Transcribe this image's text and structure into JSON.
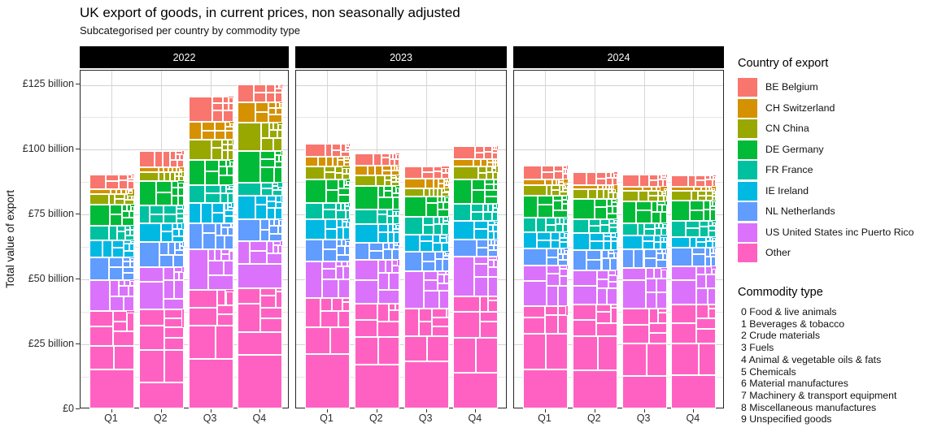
{
  "chart": {
    "title": "UK export of goods, in current prices, non seasonally adjusted",
    "subtitle": "Subcategorised per country by commodity type",
    "y_axis_title": "Total value of export",
    "legend_title": "Country of export",
    "commodity_title": "Commodity type"
  },
  "chart_data": {
    "type": "bar",
    "variant": "mosaic-stacked-faceted",
    "unit": "GBP billion",
    "ylim": [
      0,
      130
    ],
    "ytick_values": [
      0,
      25,
      50,
      75,
      100,
      125
    ],
    "ytick_labels": [
      "£0",
      "£25 billion",
      "£50 billion",
      "£75 billion",
      "£100 billion",
      "£125 billion"
    ],
    "grid": {
      "major_color": "#d3d3d3",
      "minor_color": "#e6e6e6",
      "minor_step": 12.5
    },
    "legend_position": "right",
    "facets": [
      "2022",
      "2023",
      "2024"
    ],
    "categories": [
      "Q1",
      "Q2",
      "Q3",
      "Q4"
    ],
    "series": [
      {
        "name": "BE Belgium",
        "color": "#F8766D",
        "values": {
          "2022": [
            5.5,
            6.3,
            9.6,
            6.8
          ],
          "2023": [
            5.0,
            4.7,
            4.7,
            5.2
          ],
          "2024": [
            5.2,
            4.9,
            4.7,
            4.4
          ]
        }
      },
      {
        "name": "CH Switzerland",
        "color": "#D59100",
        "values": {
          "2022": [
            1.9,
            1.6,
            6.8,
            7.8
          ],
          "2023": [
            3.7,
            3.7,
            3.7,
            2.6
          ],
          "2024": [
            2.1,
            1.6,
            1.6,
            1.6
          ]
        }
      },
      {
        "name": "CN China",
        "color": "#99A800",
        "values": {
          "2022": [
            4.3,
            3.7,
            7.8,
            11.0
          ],
          "2023": [
            5.2,
            4.2,
            3.1,
            5.2
          ],
          "2024": [
            4.2,
            3.7,
            4.2,
            3.7
          ]
        }
      },
      {
        "name": "DE Germany",
        "color": "#00BA38",
        "values": {
          "2022": [
            7.9,
            9.4,
            9.9,
            12.0
          ],
          "2023": [
            8.9,
            8.9,
            7.8,
            9.4
          ],
          "2024": [
            8.4,
            7.8,
            8.4,
            7.8
          ]
        }
      },
      {
        "name": "FR France",
        "color": "#00C19F",
        "values": {
          "2022": [
            5.7,
            6.8,
            6.8,
            5.2
          ],
          "2023": [
            6.3,
            5.7,
            6.8,
            6.3
          ],
          "2024": [
            5.7,
            5.2,
            4.7,
            6.3
          ]
        }
      },
      {
        "name": "IE Ireland",
        "color": "#00B9E3",
        "values": {
          "2022": [
            6.5,
            7.3,
            7.8,
            8.9
          ],
          "2023": [
            7.8,
            7.3,
            6.8,
            7.3
          ],
          "2024": [
            6.3,
            6.8,
            5.2,
            4.2
          ]
        }
      },
      {
        "name": "NL Netherlands",
        "color": "#619CFF",
        "values": {
          "2022": [
            8.9,
            9.7,
            9.9,
            8.4
          ],
          "2023": [
            8.4,
            6.5,
            7.3,
            6.6
          ],
          "2024": [
            6.5,
            7.8,
            7.3,
            7.3
          ]
        }
      },
      {
        "name": "US United States inc Puerto Rico",
        "color": "#DB72FB",
        "values": {
          "2022": [
            12.0,
            16.1,
            15.7,
            18.3
          ],
          "2023": [
            14.1,
            16.8,
            14.6,
            15.3
          ],
          "2024": [
            15.5,
            13.1,
            15.7,
            14.6
          ]
        }
      },
      {
        "name": "Other",
        "color": "#FF61C3",
        "values": {
          "2022": [
            37.4,
            38.2,
            45.7,
            46.3
          ],
          "2023": [
            42.6,
            40.5,
            38.4,
            43.2
          ],
          "2024": [
            39.5,
            40.0,
            38.4,
            40.0
          ]
        }
      }
    ],
    "totals": {
      "2022": [
        90.1,
        99.1,
        120.0,
        124.7
      ],
      "2023": [
        102.0,
        98.3,
        93.2,
        101.1
      ],
      "2024": [
        93.4,
        90.9,
        90.2,
        89.9
      ]
    },
    "commodities": [
      "0 Food & live animals",
      "1 Beverages & tobacco",
      "2 Crude materials",
      "3 Fuels",
      "4 Animal & vegetable oils & fats",
      "5 Chemicals",
      "6 Material manufactures",
      "7 Machinery & transport equipment",
      "8 Miscellaneous manufactures",
      "9 Unspecified goods"
    ],
    "commodity_base_shares_pct": [
      6.5,
      2.5,
      2.0,
      8.0,
      0.4,
      15.0,
      11.5,
      42.0,
      9.0,
      3.1
    ]
  }
}
